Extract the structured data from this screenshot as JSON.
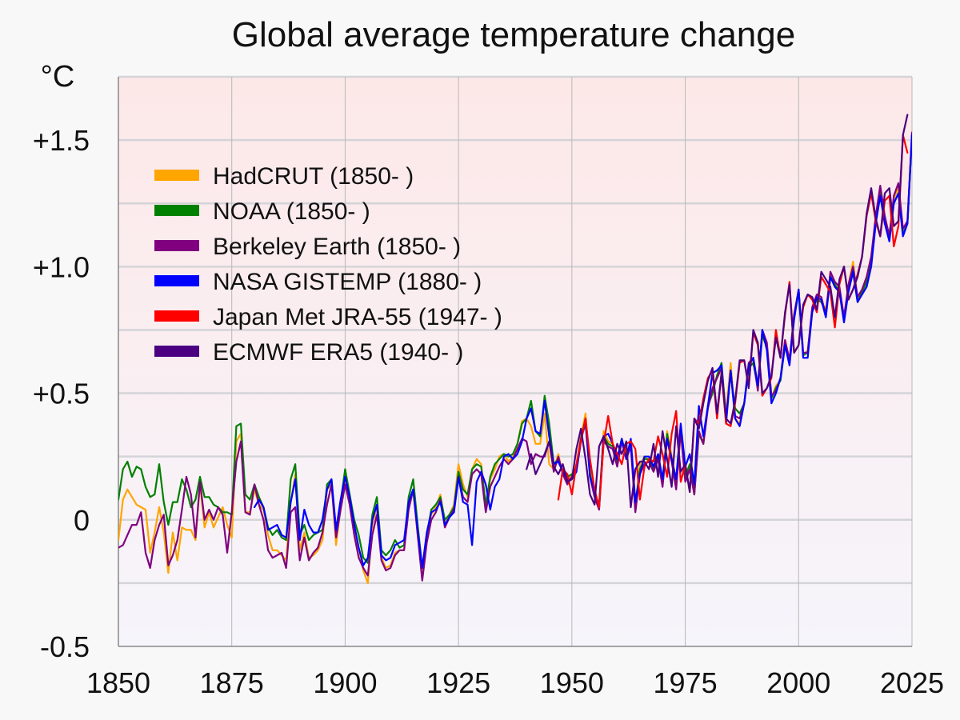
{
  "chart_data": {
    "type": "line",
    "title": "Global average temperature change",
    "ylabel": "°C",
    "xlabel": "",
    "xlim": [
      1850,
      2025
    ],
    "ylim": [
      -0.5,
      1.75
    ],
    "x_ticks": [
      1850,
      1875,
      1900,
      1925,
      1950,
      1975,
      2000,
      2025
    ],
    "x_tick_labels": [
      "1850",
      "1875",
      "1900",
      "1925",
      "1950",
      "1975",
      "2000",
      "2025"
    ],
    "y_ticks": [
      -0.5,
      0,
      0.5,
      1.0,
      1.5
    ],
    "y_tick_labels": [
      "-0.5",
      "0",
      "+0.5",
      "+1.0",
      "+1.5"
    ],
    "y_minor_grid": [
      -0.25,
      0.25,
      0.75,
      1.25
    ],
    "grid": true,
    "legend_position": "top-left",
    "background_gradient": {
      "top": "#fde8e8",
      "bottom": "#f6f5fb"
    },
    "series": [
      {
        "name": "HadCRUT (1850- )",
        "color": "#ffa500",
        "start": 1850,
        "values": [
          -0.08,
          0.08,
          0.12,
          0.09,
          0.06,
          0.05,
          0.04,
          -0.13,
          -0.05,
          0.05,
          -0.05,
          -0.21,
          -0.05,
          -0.16,
          -0.03,
          -0.04,
          -0.04,
          -0.08,
          0.14,
          -0.03,
          0.03,
          -0.03,
          0.01,
          0.05,
          -0.02,
          -0.07,
          0.31,
          0.34,
          0.03,
          0.03,
          0.12,
          0.06,
          0.04,
          -0.06,
          -0.12,
          -0.12,
          -0.14,
          -0.16,
          0.07,
          0.18,
          -0.12,
          -0.05,
          -0.15,
          -0.14,
          -0.12,
          -0.08,
          0.12,
          0.14,
          -0.1,
          0.05,
          0.15,
          0.06,
          -0.05,
          -0.11,
          -0.2,
          -0.25,
          -0.02,
          0.05,
          -0.15,
          -0.19,
          -0.18,
          -0.13,
          -0.12,
          -0.12,
          0.05,
          0.12,
          -0.06,
          -0.21,
          -0.08,
          0.02,
          0.05,
          0.1,
          -0.01,
          0.02,
          0.06,
          0.22,
          0.14,
          0.09,
          0.2,
          0.24,
          0.22,
          0.05,
          0.16,
          0.2,
          0.25,
          0.26,
          0.23,
          0.25,
          0.3,
          0.39,
          0.4,
          0.37,
          0.3,
          0.3,
          0.42,
          0.22,
          0.2,
          0.26,
          0.18,
          0.15,
          0.18,
          0.22,
          0.33,
          0.42,
          0.2,
          0.1,
          0.05,
          0.35,
          0.31,
          0.3,
          0.24,
          0.32,
          0.25,
          0.3,
          0.06,
          0.22,
          0.25,
          0.23,
          0.2,
          0.26,
          0.16,
          0.35,
          0.25,
          0.15,
          0.37,
          0.18,
          0.2,
          0.1,
          0.35,
          0.3,
          0.45,
          0.5,
          0.57,
          0.61,
          0.42,
          0.62,
          0.4,
          0.38,
          0.46,
          0.6,
          0.64,
          0.53,
          0.73,
          0.68,
          0.48,
          0.53,
          0.55,
          0.71,
          0.63,
          0.81,
          0.9,
          0.65,
          0.67,
          0.83,
          0.88,
          0.86,
          0.83,
          0.97,
          0.93,
          0.9,
          0.79,
          0.93,
          1.02,
          0.87,
          0.91,
          0.95,
          1.03,
          1.19,
          1.3,
          1.19,
          1.11,
          1.27,
          1.31,
          1.13,
          1.18,
          1.5,
          1.4
        ]
      },
      {
        "name": "NOAA (1850- )",
        "color": "#008000",
        "start": 1850,
        "values": [
          0.08,
          0.2,
          0.23,
          0.17,
          0.21,
          0.2,
          0.13,
          0.09,
          0.1,
          0.22,
          0.07,
          -0.02,
          0.07,
          0.07,
          0.16,
          0.12,
          0.05,
          0.08,
          0.17,
          0.09,
          0.09,
          0.06,
          0.05,
          0.03,
          0.03,
          0.02,
          0.37,
          0.38,
          0.1,
          0.08,
          0.14,
          0.09,
          0.05,
          -0.03,
          -0.06,
          -0.04,
          -0.07,
          -0.08,
          0.16,
          0.22,
          -0.06,
          -0.02,
          -0.08,
          -0.06,
          -0.05,
          -0.04,
          0.14,
          0.16,
          -0.05,
          0.07,
          0.2,
          0.1,
          0.0,
          -0.06,
          -0.15,
          -0.17,
          0.02,
          0.09,
          -0.12,
          -0.14,
          -0.12,
          -0.08,
          -0.11,
          -0.1,
          0.09,
          0.16,
          -0.02,
          -0.19,
          -0.06,
          0.04,
          0.06,
          0.09,
          0.0,
          0.02,
          0.05,
          0.19,
          0.12,
          0.1,
          0.2,
          0.22,
          0.21,
          0.06,
          0.17,
          0.22,
          0.24,
          0.26,
          0.25,
          0.26,
          0.3,
          0.38,
          0.4,
          0.47,
          0.35,
          0.33,
          0.49,
          0.38,
          0.22,
          0.24,
          0.19,
          0.17,
          0.18,
          0.2,
          0.32,
          0.4,
          0.18,
          0.1,
          0.06,
          0.33,
          0.3,
          0.29,
          0.23,
          0.32,
          0.25,
          0.3,
          0.05,
          0.2,
          0.24,
          0.24,
          0.2,
          0.25,
          0.15,
          0.34,
          0.24,
          0.14,
          0.37,
          0.17,
          0.22,
          0.1,
          0.34,
          0.3,
          0.45,
          0.5,
          0.57,
          0.62,
          0.4,
          0.58,
          0.44,
          0.42,
          0.46,
          0.6,
          0.62,
          0.52,
          0.73,
          0.68,
          0.48,
          0.52,
          0.55,
          0.69,
          0.62,
          0.8,
          0.9,
          0.65,
          0.66,
          0.83,
          0.87,
          0.86,
          0.82,
          0.96,
          0.93,
          0.9,
          0.8,
          0.91,
          0.98,
          0.86,
          0.9,
          0.94,
          1.03,
          1.18,
          1.3,
          1.17,
          1.13,
          1.25,
          1.29,
          1.13,
          1.17,
          1.52,
          1.46
        ]
      },
      {
        "name": "Berkeley Earth (1850- )",
        "color": "#800080",
        "start": 1850,
        "values": [
          -0.11,
          -0.1,
          -0.06,
          -0.02,
          -0.02,
          0.03,
          -0.13,
          -0.19,
          -0.08,
          -0.02,
          0.02,
          -0.18,
          -0.14,
          -0.08,
          0.04,
          0.17,
          0.1,
          -0.07,
          0.15,
          0.0,
          0.04,
          0.0,
          0.05,
          0.02,
          -0.13,
          0.03,
          0.23,
          0.31,
          0.03,
          0.02,
          0.14,
          0.06,
          0.0,
          -0.12,
          -0.15,
          -0.14,
          -0.13,
          -0.19,
          0.03,
          0.05,
          -0.16,
          -0.07,
          -0.16,
          -0.13,
          -0.11,
          -0.05,
          0.06,
          0.14,
          -0.07,
          0.04,
          0.14,
          0.06,
          -0.06,
          -0.15,
          -0.19,
          -0.22,
          -0.06,
          0.02,
          -0.16,
          -0.2,
          -0.19,
          -0.14,
          -0.12,
          -0.12,
          0.04,
          0.12,
          -0.06,
          -0.24,
          -0.09,
          0.0,
          0.03,
          0.08,
          -0.03,
          0.01,
          0.04,
          0.17,
          0.09,
          0.07,
          0.18,
          0.2,
          0.18,
          0.03,
          0.13,
          0.17,
          0.21,
          0.24,
          0.22,
          0.24,
          0.28,
          0.32,
          0.31,
          0.22,
          0.26,
          0.25,
          0.25,
          0.31,
          0.19,
          0.25,
          0.18,
          0.14,
          0.17,
          0.21,
          0.32,
          0.38,
          0.17,
          0.09,
          0.04,
          0.31,
          0.29,
          0.28,
          0.21,
          0.31,
          0.24,
          0.29,
          0.03,
          0.18,
          0.22,
          0.23,
          0.19,
          0.24,
          0.13,
          0.32,
          0.23,
          0.12,
          0.35,
          0.15,
          0.2,
          0.1,
          0.35,
          0.3,
          0.44,
          0.52,
          0.56,
          0.6,
          0.4,
          0.59,
          0.41,
          0.4,
          0.46,
          0.62,
          0.64,
          0.51,
          0.75,
          0.7,
          0.49,
          0.51,
          0.56,
          0.71,
          0.63,
          0.81,
          0.91,
          0.66,
          0.66,
          0.84,
          0.89,
          0.88,
          0.81,
          0.98,
          0.94,
          0.92,
          0.8,
          0.93,
          1.0,
          0.88,
          0.91,
          0.96,
          1.04,
          1.2,
          1.32,
          1.2,
          1.12,
          1.28,
          1.33,
          1.15,
          1.18,
          1.53,
          1.48
        ]
      },
      {
        "name": "NASA GISTEMP (1880- )",
        "color": "#0000ff",
        "start": 1880,
        "values": [
          0.05,
          0.08,
          0.05,
          -0.04,
          -0.03,
          -0.02,
          -0.06,
          -0.07,
          0.07,
          0.16,
          -0.08,
          0.04,
          -0.02,
          -0.05,
          -0.05,
          0.0,
          0.12,
          0.16,
          -0.04,
          0.08,
          0.17,
          0.09,
          -0.02,
          -0.11,
          -0.18,
          -0.15,
          0.0,
          0.06,
          -0.14,
          -0.16,
          -0.15,
          -0.1,
          -0.09,
          -0.08,
          0.07,
          0.12,
          -0.04,
          -0.19,
          -0.05,
          0.03,
          0.04,
          0.07,
          -0.02,
          0.01,
          0.03,
          0.17,
          0.07,
          0.06,
          -0.1,
          0.15,
          0.19,
          0.14,
          0.04,
          0.13,
          0.16,
          0.25,
          0.26,
          0.24,
          0.26,
          0.31,
          0.4,
          0.44,
          0.35,
          0.34,
          0.47,
          0.33,
          0.22,
          0.23,
          0.19,
          0.16,
          0.16,
          0.19,
          0.31,
          0.4,
          0.17,
          0.11,
          0.05,
          0.33,
          0.34,
          0.3,
          0.24,
          0.32,
          0.24,
          0.32,
          0.07,
          0.18,
          0.25,
          0.25,
          0.21,
          0.26,
          0.16,
          0.32,
          0.24,
          0.16,
          0.38,
          0.21,
          0.26,
          0.14,
          0.45,
          0.33,
          0.45,
          0.58,
          0.59,
          0.61,
          0.38,
          0.59,
          0.4,
          0.37,
          0.46,
          0.61,
          0.64,
          0.53,
          0.75,
          0.67,
          0.46,
          0.5,
          0.56,
          0.69,
          0.61,
          0.79,
          0.91,
          0.64,
          0.64,
          0.82,
          0.88,
          0.87,
          0.8,
          0.96,
          0.92,
          0.9,
          0.78,
          0.9,
          0.98,
          0.86,
          0.89,
          0.92,
          1.0,
          1.17,
          1.28,
          1.17,
          1.1,
          1.25,
          1.29,
          1.12,
          1.17,
          1.52,
          1.46
        ]
      },
      {
        "name": "Japan Met JRA-55 (1947- )",
        "color": "#ff0000",
        "start": 1947,
        "values": [
          0.08,
          0.2,
          0.18,
          0.1,
          0.22,
          0.31,
          0.4,
          0.24,
          0.12,
          0.05,
          0.3,
          0.41,
          0.3,
          0.26,
          0.22,
          0.3,
          0.31,
          0.28,
          0.08,
          0.21,
          0.24,
          0.23,
          0.33,
          0.26,
          0.17,
          0.34,
          0.43,
          0.15,
          0.22,
          0.11,
          0.4,
          0.38,
          0.48,
          0.56,
          0.59,
          0.4,
          0.58,
          0.38,
          0.37,
          0.46,
          0.62,
          0.63,
          0.53,
          0.74,
          0.69,
          0.49,
          0.52,
          0.56,
          0.75,
          0.64,
          0.81,
          0.94,
          0.66,
          0.69,
          0.84,
          0.89,
          0.87,
          0.82,
          0.96,
          0.93,
          0.9,
          0.76,
          0.93,
          1.0,
          0.87,
          0.91,
          0.97,
          1.04,
          1.2,
          1.29,
          1.18,
          1.12,
          1.26,
          1.28,
          1.08,
          1.16,
          1.52,
          1.45
        ]
      },
      {
        "name": "ECMWF ERA5 (1940- )",
        "color": "#4b0082",
        "start": 1940,
        "values": [
          0.2,
          0.26,
          0.18,
          0.22,
          0.26,
          0.31,
          0.21,
          0.18,
          0.22,
          0.15,
          0.16,
          0.28,
          0.36,
          0.24,
          0.1,
          0.06,
          0.29,
          0.33,
          0.28,
          0.22,
          0.3,
          0.26,
          0.31,
          0.05,
          0.2,
          0.23,
          0.23,
          0.2,
          0.3,
          0.17,
          0.35,
          0.24,
          0.13,
          0.37,
          0.19,
          0.22,
          0.11,
          0.4,
          0.36,
          0.46,
          0.55,
          0.6,
          0.42,
          0.58,
          0.4,
          0.38,
          0.47,
          0.63,
          0.63,
          0.52,
          0.75,
          0.7,
          0.5,
          0.52,
          0.57,
          0.72,
          0.64,
          0.82,
          0.93,
          0.66,
          0.69,
          0.85,
          0.89,
          0.88,
          0.83,
          0.98,
          0.95,
          0.92,
          0.8,
          0.95,
          1.0,
          0.87,
          0.91,
          0.96,
          1.04,
          1.21,
          1.31,
          1.19,
          1.12,
          1.29,
          1.31,
          1.16,
          1.18,
          1.52,
          1.6
        ]
      }
    ]
  }
}
